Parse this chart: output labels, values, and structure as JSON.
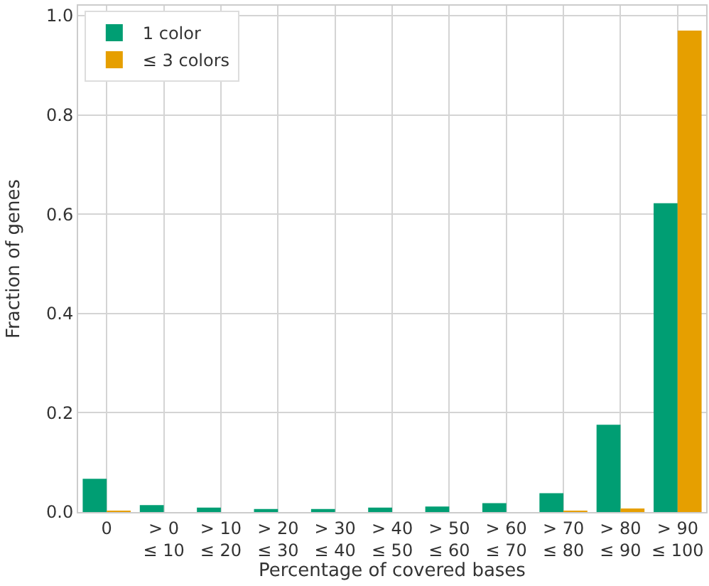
{
  "chart_data": {
    "type": "bar",
    "xlabel": "Percentage of covered bases",
    "ylabel": "Fraction of genes",
    "categories": [
      "0",
      "> 0\n≤ 10",
      "> 10\n≤ 20",
      "> 20\n≤ 30",
      "> 30\n≤ 40",
      "> 40\n≤ 50",
      "> 50\n≤ 60",
      "> 60\n≤ 70",
      "> 70\n≤ 80",
      "> 80\n≤ 90",
      "> 90\n≤ 100"
    ],
    "series": [
      {
        "name": "1 color",
        "color": "#009e73",
        "values": [
          0.067,
          0.014,
          0.009,
          0.006,
          0.006,
          0.009,
          0.011,
          0.018,
          0.038,
          0.176,
          0.622
        ]
      },
      {
        "name": "≤ 3 colors",
        "color": "#e69f00",
        "values": [
          0.001,
          null,
          null,
          null,
          null,
          null,
          null,
          null,
          0.002,
          0.007,
          0.97
        ]
      }
    ],
    "ylim": [
      0,
      1.02
    ],
    "yticks": [
      {
        "value": 0,
        "label": "0.0"
      },
      0.2,
      0.4,
      0.6,
      0.8,
      {
        "value": 1,
        "label": "1.0"
      }
    ],
    "grid": true,
    "legend": "top left"
  }
}
